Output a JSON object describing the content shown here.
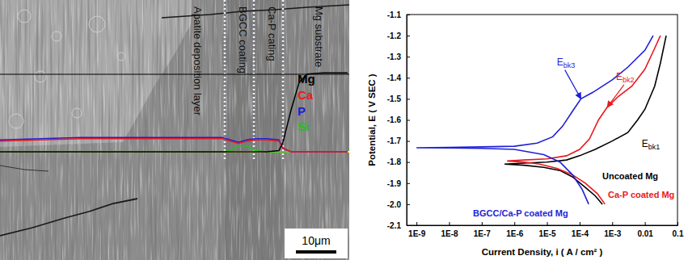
{
  "chart_data": [
    {
      "type": "line",
      "xlim": [
        0,
        86.4
      ],
      "ylim": [
        0,
        100
      ],
      "tick_labels": false,
      "x": [
        0,
        10,
        20,
        30,
        40,
        50,
        55,
        57,
        59,
        61,
        63,
        66,
        69,
        70,
        72,
        74,
        76,
        80,
        86
      ],
      "series": [
        {
          "name": "Mg",
          "color": "#000000",
          "values": [
            0,
            0,
            0,
            0,
            0,
            0,
            0,
            0,
            0,
            0,
            0,
            0,
            1,
            8,
            35,
            58,
            65,
            66,
            66
          ]
        },
        {
          "name": "Ca",
          "color": "#e8191e",
          "values": [
            9,
            10,
            11,
            11,
            11,
            11,
            11,
            9,
            7,
            9,
            10,
            10,
            9,
            3,
            0,
            0,
            0,
            0,
            0
          ]
        },
        {
          "name": "P",
          "color": "#1f1fd8",
          "values": [
            10,
            11,
            12,
            12,
            12,
            12,
            12,
            10,
            8,
            10,
            11,
            11,
            10,
            3,
            0,
            0,
            0,
            0,
            0
          ]
        },
        {
          "name": "Si",
          "color": "#22c022",
          "values": [
            0,
            0,
            0,
            0,
            0,
            0,
            0,
            1,
            5,
            5,
            1,
            0,
            0,
            0,
            0,
            0,
            0,
            0,
            0
          ]
        }
      ],
      "layer_boundaries": [
        55.6,
        62.8,
        70
      ],
      "annotations": [
        {
          "text": "Apatite deposition layer"
        },
        {
          "text": "BGCC coating"
        },
        {
          "text": "Ca-P cating"
        },
        {
          "text": "Mg substrate"
        }
      ],
      "scale_bar": {
        "value": 10,
        "label": "10μm"
      }
    },
    {
      "type": "line",
      "x_label": "Current Density, i ( A / cm² )",
      "y_label": "Potential, E ( V SEC )",
      "log": "x",
      "xlim": [
        5e-10,
        0.1
      ],
      "ylim": [
        -2.1,
        -1.1
      ],
      "xticks": [
        {
          "value": 1e-09,
          "label": "1E-9"
        },
        {
          "value": 1e-08,
          "label": "1E-8"
        },
        {
          "value": 1e-07,
          "label": "1E-7"
        },
        {
          "value": 1e-06,
          "label": "1E-6"
        },
        {
          "value": 1e-05,
          "label": "1E-5"
        },
        {
          "value": 0.0001,
          "label": "1E-4"
        },
        {
          "value": 0.001,
          "label": "1E-3"
        },
        0.01,
        0.1
      ],
      "yticks": [
        -1.1,
        -1.2,
        -1.3,
        -1.4,
        -1.5,
        -1.6,
        -1.7,
        -1.8,
        -1.9,
        {
          "value": -2,
          "label": "-2.0"
        },
        -2.1
      ],
      "series": [
        {
          "name": "Uncoated Mg",
          "color": "#000000",
          "x": [
            0.0005,
            0.0003,
            0.00015,
            6e-05,
            2.5e-05,
            8e-06,
            2e-06,
            5e-07,
            2e-06,
            1e-05,
            4e-05,
            0.0001,
            0.0003,
            0.001,
            0.003,
            0.006,
            0.01,
            0.02,
            0.03,
            0.045
          ],
          "values": [
            -2.0,
            -1.96,
            -1.92,
            -1.87,
            -1.84,
            -1.825,
            -1.815,
            -1.81,
            -1.805,
            -1.8,
            -1.79,
            -1.77,
            -1.74,
            -1.7,
            -1.66,
            -1.6,
            -1.55,
            -1.44,
            -1.33,
            -1.2
          ]
        },
        {
          "name": "Ca-P coated Mg",
          "color": "#e8191e",
          "x": [
            0.0006,
            0.00035,
            0.00015,
            6e-05,
            2e-05,
            6e-06,
            2e-06,
            6e-07,
            2e-06,
            1e-05,
            4e-05,
            0.0001,
            0.0002,
            0.00038,
            0.0007,
            0.0015,
            0.004,
            0.01,
            0.02,
            0.03
          ],
          "values": [
            -2.0,
            -1.95,
            -1.9,
            -1.86,
            -1.83,
            -1.81,
            -1.8,
            -1.795,
            -1.79,
            -1.785,
            -1.77,
            -1.74,
            -1.69,
            -1.6,
            -1.54,
            -1.49,
            -1.44,
            -1.36,
            -1.26,
            -1.2
          ]
        },
        {
          "name": "BGCC/Ca-P coated Mg",
          "color": "#1f1fd8",
          "x": [
            0.00019,
            0.00012,
            6e-05,
            2.5e-05,
            8e-06,
            1e-06,
            1e-07,
            1e-08,
            1e-09,
            1e-08,
            1e-07,
            1e-06,
            5e-06,
            1.5e-05,
            3e-05,
            6e-05,
            0.00011,
            0.00025,
            0.001,
            0.003,
            0.01,
            0.018
          ],
          "values": [
            -2.0,
            -1.93,
            -1.86,
            -1.8,
            -1.765,
            -1.74,
            -1.735,
            -1.733,
            -1.732,
            -1.73,
            -1.728,
            -1.725,
            -1.71,
            -1.68,
            -1.63,
            -1.56,
            -1.5,
            -1.47,
            -1.41,
            -1.35,
            -1.27,
            -1.2
          ]
        }
      ],
      "annotations": [
        {
          "text": "Ebk1",
          "x": 0.008,
          "y": -1.73,
          "color": "#000000"
        },
        {
          "text": "Ebk2",
          "x": 0.0013,
          "y": -1.41,
          "color": "#e8191e",
          "arrow_to": [
            0.0007,
            -1.54
          ]
        },
        {
          "text": "Ebk3",
          "x": 2e-05,
          "y": -1.34,
          "color": "#1f1fd8",
          "arrow_to": [
            0.00011,
            -1.5
          ]
        }
      ]
    }
  ]
}
